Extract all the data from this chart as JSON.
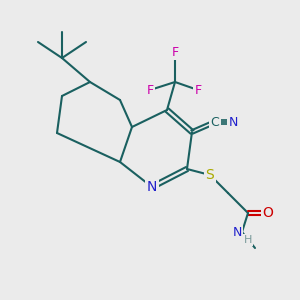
{
  "background_color": "#ebebeb",
  "bond_color": "#1a6060",
  "bond_width": 1.5,
  "atom_colors": {
    "N": "#2020cc",
    "O": "#cc0000",
    "S": "#aaaa00",
    "F": "#cc00aa",
    "C": "#1a6060",
    "H": "#7a9a9a"
  },
  "font_size": 9
}
